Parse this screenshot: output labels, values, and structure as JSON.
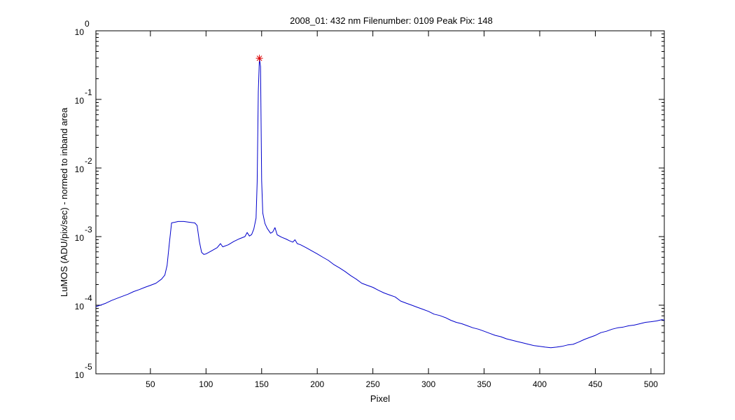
{
  "chart_data": {
    "type": "line",
    "title": "2008_01: 432 nm  Filenumber: 0109 Peak Pix: 148",
    "xlabel": "Pixel",
    "ylabel": "LuMOS (ADU/pix/sec) - normed to inband area",
    "xlim": [
      1,
      512
    ],
    "ylim": [
      1e-05,
      1
    ],
    "yscale": "log",
    "grid": false,
    "x_ticks": [
      50,
      100,
      150,
      200,
      250,
      300,
      350,
      400,
      450,
      500
    ],
    "y_ticks": [
      {
        "base": "10",
        "exp": "0",
        "value": 1
      },
      {
        "base": "10",
        "exp": "-1",
        "value": 0.1
      },
      {
        "base": "10",
        "exp": "-2",
        "value": 0.01
      },
      {
        "base": "10",
        "exp": "-3",
        "value": 0.001
      },
      {
        "base": "10",
        "exp": "-4",
        "value": 0.0001
      },
      {
        "base": "10",
        "exp": "-5",
        "value": 1e-05
      }
    ],
    "series": [
      {
        "color": "#0000cc",
        "points": [
          [
            1,
            9.53e-05
          ],
          [
            5,
            0.0001
          ],
          [
            10,
            0.000107
          ],
          [
            15,
            0.000117
          ],
          [
            20,
            0.000126
          ],
          [
            25,
            0.000135
          ],
          [
            30,
            0.000145
          ],
          [
            35,
            0.000158
          ],
          [
            40,
            0.000169
          ],
          [
            45,
            0.000182
          ],
          [
            50,
            0.000195
          ],
          [
            55,
            0.000209
          ],
          [
            60,
            0.00024
          ],
          [
            63,
            0.000275
          ],
          [
            65,
            0.00038
          ],
          [
            67,
            0.000795
          ],
          [
            69,
            0.001585
          ],
          [
            72,
            0.00162
          ],
          [
            75,
            0.00166
          ],
          [
            80,
            0.00166
          ],
          [
            85,
            0.00162
          ],
          [
            90,
            0.00158
          ],
          [
            92,
            0.00145
          ],
          [
            94,
            0.00085
          ],
          [
            96,
            0.00059
          ],
          [
            98,
            0.00055
          ],
          [
            100,
            0.00056
          ],
          [
            105,
            0.00062
          ],
          [
            110,
            0.00069
          ],
          [
            113,
            0.00079
          ],
          [
            115,
            0.00071
          ],
          [
            120,
            0.00076
          ],
          [
            125,
            0.00085
          ],
          [
            130,
            0.00093
          ],
          [
            135,
            0.001
          ],
          [
            137,
            0.00115
          ],
          [
            139,
            0.00102
          ],
          [
            141,
            0.00107
          ],
          [
            143,
            0.00129
          ],
          [
            145,
            0.00186
          ],
          [
            146,
            0.0063
          ],
          [
            147,
            0.129
          ],
          [
            148,
            0.398
          ],
          [
            149,
            0.3
          ],
          [
            150,
            0.0065
          ],
          [
            151,
            0.0022
          ],
          [
            153,
            0.00155
          ],
          [
            155,
            0.00132
          ],
          [
            158,
            0.00112
          ],
          [
            160,
            0.00117
          ],
          [
            162,
            0.00135
          ],
          [
            164,
            0.00106
          ],
          [
            168,
            0.00098
          ],
          [
            172,
            0.00092
          ],
          [
            175,
            0.00087
          ],
          [
            178,
            0.00083
          ],
          [
            180,
            0.0009
          ],
          [
            182,
            0.00079
          ],
          [
            185,
            0.00076
          ],
          [
            190,
            0.00069
          ],
          [
            195,
            0.00062
          ],
          [
            200,
            0.00056
          ],
          [
            205,
            0.0005
          ],
          [
            210,
            0.00045
          ],
          [
            215,
            0.00039
          ],
          [
            220,
            0.00035
          ],
          [
            225,
            0.00031
          ],
          [
            230,
            0.00027
          ],
          [
            235,
            0.00024
          ],
          [
            240,
            0.000209
          ],
          [
            245,
            0.000195
          ],
          [
            250,
            0.000182
          ],
          [
            255,
            0.000165
          ],
          [
            260,
            0.000151
          ],
          [
            265,
            0.000141
          ],
          [
            270,
            0.000132
          ],
          [
            275,
            0.000115
          ],
          [
            280,
            0.000107
          ],
          [
            285,
            0.0001
          ],
          [
            290,
            9.33e-05
          ],
          [
            295,
            8.71e-05
          ],
          [
            300,
            8.13e-05
          ],
          [
            305,
            7.41e-05
          ],
          [
            310,
            7.08e-05
          ],
          [
            315,
            6.61e-05
          ],
          [
            320,
            6.03e-05
          ],
          [
            325,
            5.62e-05
          ],
          [
            330,
            5.37e-05
          ],
          [
            335,
            5.01e-05
          ],
          [
            340,
            4.68e-05
          ],
          [
            345,
            4.47e-05
          ],
          [
            350,
            4.17e-05
          ],
          [
            355,
            3.89e-05
          ],
          [
            360,
            3.63e-05
          ],
          [
            365,
            3.47e-05
          ],
          [
            370,
            3.24e-05
          ],
          [
            375,
            3.09e-05
          ],
          [
            380,
            2.95e-05
          ],
          [
            385,
            2.82e-05
          ],
          [
            390,
            2.69e-05
          ],
          [
            395,
            2.57e-05
          ],
          [
            400,
            2.51e-05
          ],
          [
            405,
            2.45e-05
          ],
          [
            410,
            2.4e-05
          ],
          [
            415,
            2.45e-05
          ],
          [
            420,
            2.51e-05
          ],
          [
            425,
            2.63e-05
          ],
          [
            430,
            2.69e-05
          ],
          [
            435,
            2.9e-05
          ],
          [
            440,
            3.16e-05
          ],
          [
            445,
            3.39e-05
          ],
          [
            450,
            3.63e-05
          ],
          [
            455,
            3.98e-05
          ],
          [
            460,
            4.17e-05
          ],
          [
            465,
            4.47e-05
          ],
          [
            470,
            4.68e-05
          ],
          [
            475,
            4.79e-05
          ],
          [
            480,
            5.01e-05
          ],
          [
            485,
            5.13e-05
          ],
          [
            490,
            5.37e-05
          ],
          [
            495,
            5.62e-05
          ],
          [
            500,
            5.75e-05
          ],
          [
            505,
            5.89e-05
          ],
          [
            510,
            6.17e-05
          ],
          [
            512,
            6.03e-05
          ]
        ]
      }
    ],
    "peak_marker": {
      "x": 148,
      "y": 0.398,
      "color": "#dd0000",
      "symbol": "*"
    }
  }
}
